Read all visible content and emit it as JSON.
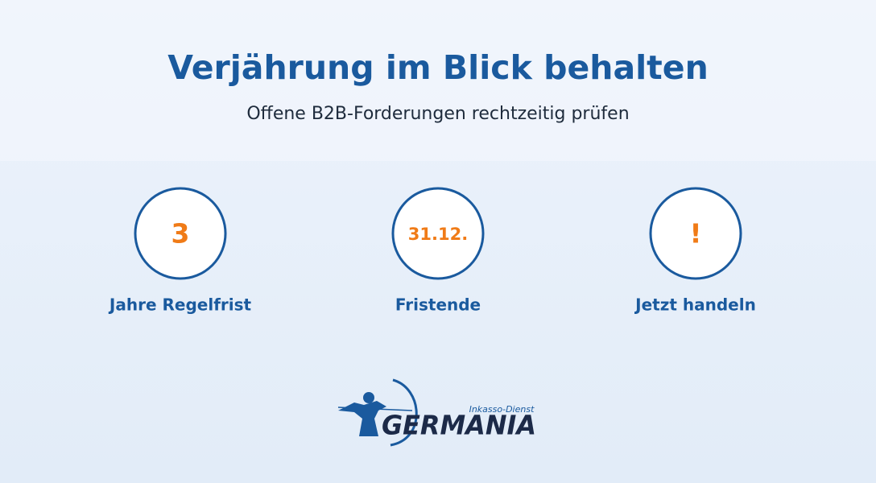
{
  "header": {
    "title": "Verjährung im Blick behalten",
    "subtitle": "Offene B2B-Forderungen rechtzeitig prüfen"
  },
  "items": [
    {
      "value": "3",
      "label": "Jahre Regelfrist"
    },
    {
      "value": "31.12.",
      "label": "Fristende"
    },
    {
      "value": "!",
      "label": "Jetzt handeln"
    }
  ],
  "logo": {
    "tagline": "Inkasso-Dienst",
    "name": "GERMANIA"
  }
}
